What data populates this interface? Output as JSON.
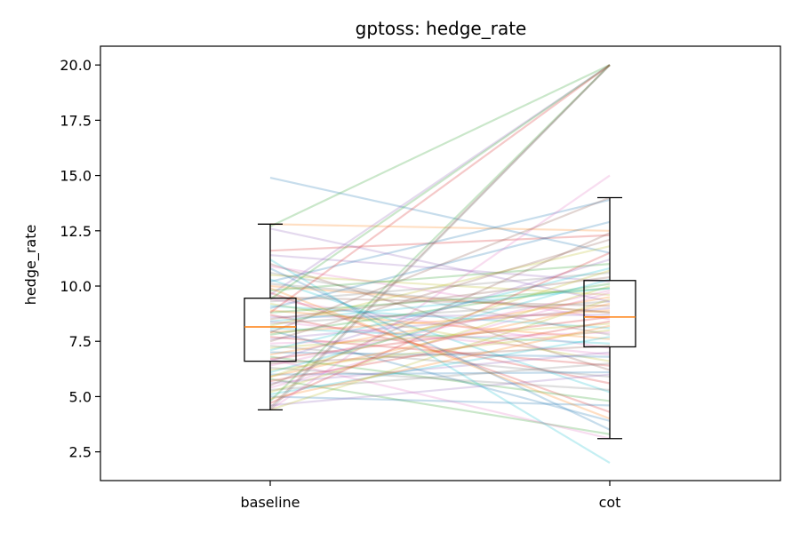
{
  "chart_data": {
    "type": "line",
    "title": "gptoss: hedge_rate",
    "xlabel": "",
    "ylabel": "hedge_rate",
    "categories": [
      "baseline",
      "cot"
    ],
    "ylim": [
      1.2,
      20.85
    ],
    "yticks": [
      "2.5",
      "5.0",
      "7.5",
      "10.0",
      "12.5",
      "15.0",
      "17.5",
      "20.0"
    ],
    "grid": false,
    "legend": "none",
    "palette": [
      "#1f77b4",
      "#ff7f0e",
      "#2ca02c",
      "#d62728",
      "#9467bd",
      "#8c564b",
      "#e377c2",
      "#7f7f7f",
      "#bcbd22",
      "#17becf"
    ],
    "pairs": [
      [
        14.9,
        11.5
      ],
      [
        12.8,
        12.5
      ],
      [
        12.7,
        20.0
      ],
      [
        11.6,
        12.3
      ],
      [
        11.4,
        10.2
      ],
      [
        11.0,
        6.2
      ],
      [
        10.9,
        8.5
      ],
      [
        10.6,
        7.8
      ],
      [
        10.5,
        9.6
      ],
      [
        10.3,
        5.2
      ],
      [
        10.2,
        13.9
      ],
      [
        10.0,
        8.8
      ],
      [
        9.8,
        11.0
      ],
      [
        9.7,
        4.3
      ],
      [
        9.6,
        20.0
      ],
      [
        9.5,
        9.1
      ],
      [
        9.4,
        7.2
      ],
      [
        9.3,
        10.6
      ],
      [
        9.2,
        6.6
      ],
      [
        9.1,
        8.1
      ],
      [
        9.0,
        12.9
      ],
      [
        8.9,
        7.6
      ],
      [
        8.8,
        9.9
      ],
      [
        8.7,
        5.6
      ],
      [
        8.6,
        8.7
      ],
      [
        8.5,
        10.4
      ],
      [
        8.4,
        6.9
      ],
      [
        8.3,
        9.3
      ],
      [
        8.2,
        11.8
      ],
      [
        8.1,
        7.4
      ],
      [
        8.0,
        3.9
      ],
      [
        7.9,
        8.9
      ],
      [
        7.8,
        10.1
      ],
      [
        7.7,
        6.4
      ],
      [
        7.6,
        9.0
      ],
      [
        7.5,
        12.1
      ],
      [
        7.4,
        7.9
      ],
      [
        7.3,
        5.9
      ],
      [
        7.2,
        8.3
      ],
      [
        7.1,
        10.8
      ],
      [
        7.0,
        6.8
      ],
      [
        6.9,
        9.5
      ],
      [
        6.8,
        4.8
      ],
      [
        6.7,
        8.6
      ],
      [
        6.6,
        11.2
      ],
      [
        6.5,
        7.3
      ],
      [
        6.4,
        9.8
      ],
      [
        6.3,
        5.3
      ],
      [
        6.2,
        8.0
      ],
      [
        6.1,
        10.3
      ],
      [
        6.0,
        6.1
      ],
      [
        5.9,
        9.2
      ],
      [
        5.8,
        3.3
      ],
      [
        5.7,
        8.4
      ],
      [
        5.6,
        7.0
      ],
      [
        5.5,
        12.4
      ],
      [
        5.4,
        9.7
      ],
      [
        5.3,
        6.5
      ],
      [
        5.2,
        10.0
      ],
      [
        5.1,
        7.7
      ],
      [
        5.0,
        4.6
      ],
      [
        4.9,
        8.2
      ],
      [
        4.8,
        20.0
      ],
      [
        4.7,
        11.5
      ],
      [
        4.6,
        6.0
      ],
      [
        4.5,
        20.0
      ],
      [
        4.4,
        15.0
      ],
      [
        4.4,
        20.0
      ],
      [
        4.4,
        9.4
      ],
      [
        11.2,
        2.0
      ],
      [
        10.8,
        3.5
      ],
      [
        9.9,
        4.0
      ],
      [
        9.4,
        20.0
      ],
      [
        8.8,
        20.0
      ],
      [
        12.6,
        9.3
      ],
      [
        7.9,
        14.0
      ],
      [
        6.7,
        3.1
      ],
      [
        10.1,
        8.8
      ],
      [
        5.9,
        10.7
      ],
      [
        8.4,
        9.9
      ]
    ],
    "boxes": [
      {
        "category": "baseline",
        "whisker_low": 4.4,
        "q1": 6.6,
        "median": 8.15,
        "q3": 9.45,
        "whisker_high": 12.8
      },
      {
        "category": "cot",
        "whisker_low": 3.1,
        "q1": 7.25,
        "median": 8.6,
        "q3": 10.25,
        "whisker_high": 14.0
      }
    ]
  }
}
